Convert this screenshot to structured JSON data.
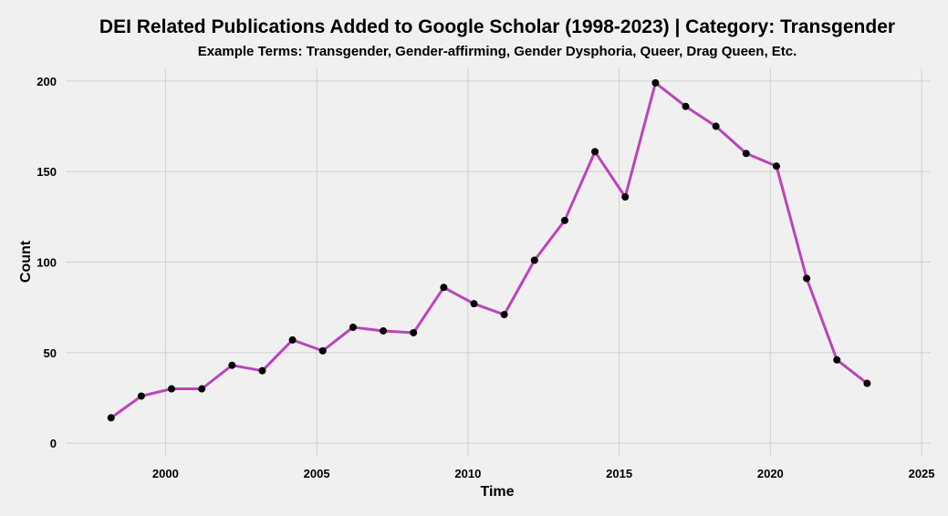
{
  "chart_data": {
    "type": "line",
    "title": "DEI Related Publications Added to Google Scholar (1998-2023) | Category: Transgender",
    "subtitle": "Example Terms: Transgender, Gender-affirming, Gender Dysphoria, Queer, Drag Queen, Etc.",
    "xlabel": "Time",
    "ylabel": "Count",
    "xlim": [
      1996.7,
      2025.3
    ],
    "ylim": [
      -7,
      207
    ],
    "x_ticks": [
      "2000",
      "2005",
      "2010",
      "2015",
      "2020",
      "2025"
    ],
    "y_ticks": [
      "0",
      "50",
      "100",
      "150",
      "200"
    ],
    "grid": true,
    "line_color": "#bb44bb",
    "marker_color": "#000000",
    "series": [
      {
        "x": [
          1998.2,
          1999.2,
          2000.2,
          2001.2,
          2002.2,
          2003.2,
          2004.2,
          2005.2,
          2006.2,
          2007.2,
          2008.2,
          2009.2,
          2010.2,
          2011.2,
          2012.2,
          2013.2,
          2014.2,
          2015.2,
          2016.2,
          2017.2,
          2018.2,
          2019.2,
          2020.2,
          2021.2,
          2022.2,
          2023.2
        ],
        "y": [
          14,
          26,
          30,
          30,
          43,
          40,
          57,
          51,
          64,
          62,
          61,
          86,
          77,
          71,
          101,
          123,
          161,
          136,
          199,
          186,
          175,
          160,
          153,
          91,
          46,
          33
        ]
      }
    ]
  }
}
